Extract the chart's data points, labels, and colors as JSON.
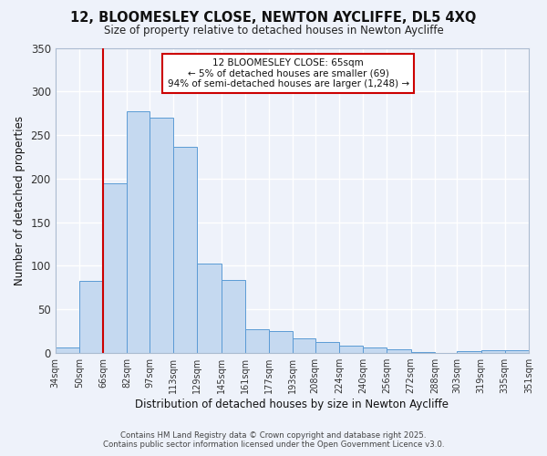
{
  "title": "12, BLOOMESLEY CLOSE, NEWTON AYCLIFFE, DL5 4XQ",
  "subtitle": "Size of property relative to detached houses in Newton Aycliffe",
  "xlabel": "Distribution of detached houses by size in Newton Aycliffe",
  "ylabel": "Number of detached properties",
  "bar_color": "#c5d9f0",
  "bar_edge_color": "#5b9bd5",
  "background_color": "#eef2fa",
  "grid_color": "#d8e0f0",
  "bin_edges": [
    34,
    50,
    66,
    82,
    97,
    113,
    129,
    145,
    161,
    177,
    193,
    208,
    224,
    240,
    256,
    272,
    288,
    303,
    319,
    335,
    351
  ],
  "bin_labels": [
    "34sqm",
    "50sqm",
    "66sqm",
    "82sqm",
    "97sqm",
    "113sqm",
    "129sqm",
    "145sqm",
    "161sqm",
    "177sqm",
    "193sqm",
    "208sqm",
    "224sqm",
    "240sqm",
    "256sqm",
    "272sqm",
    "288sqm",
    "303sqm",
    "319sqm",
    "335sqm",
    "351sqm"
  ],
  "bar_heights": [
    6,
    83,
    195,
    277,
    270,
    237,
    103,
    84,
    27,
    25,
    17,
    13,
    8,
    6,
    4,
    1,
    0,
    2,
    3,
    3
  ],
  "ylim": [
    0,
    350
  ],
  "yticks": [
    0,
    50,
    100,
    150,
    200,
    250,
    300,
    350
  ],
  "vline_x": 66,
  "vline_color": "#cc0000",
  "annotation_title": "12 BLOOMESLEY CLOSE: 65sqm",
  "annotation_line1": "← 5% of detached houses are smaller (69)",
  "annotation_line2": "94% of semi-detached houses are larger (1,248) →",
  "annotation_box_color": "#ffffff",
  "annotation_box_edge": "#cc0000",
  "footer1": "Contains HM Land Registry data © Crown copyright and database right 2025.",
  "footer2": "Contains public sector information licensed under the Open Government Licence v3.0."
}
